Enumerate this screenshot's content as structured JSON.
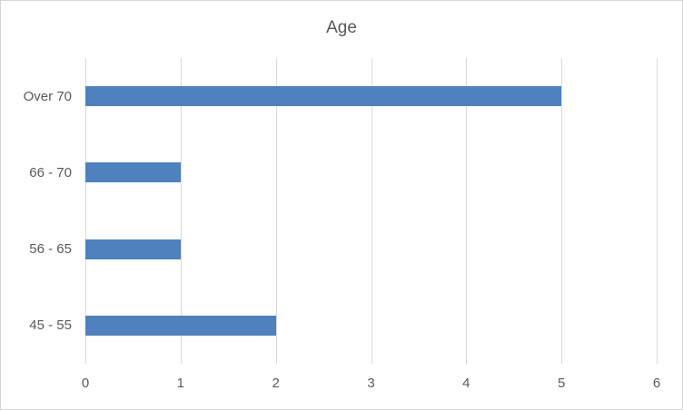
{
  "chart_data": {
    "type": "bar",
    "orientation": "horizontal",
    "title": "Age",
    "categories": [
      "Over 70",
      "66 - 70",
      "56 - 65",
      "45 - 55"
    ],
    "values": [
      5,
      1,
      1,
      2
    ],
    "xlabel": "",
    "ylabel": "",
    "xlim": [
      0,
      6
    ],
    "xticks": [
      0,
      1,
      2,
      3,
      4,
      5,
      6
    ],
    "grid": "vertical-only",
    "legend": "none",
    "colors": {
      "bar": "#4e81bd",
      "gridline": "#d9d9d9",
      "text": "#595959",
      "frame_border": "#d6d6d6",
      "background": "#ffffff"
    }
  }
}
